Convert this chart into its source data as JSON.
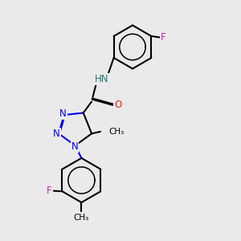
{
  "background_color": "#eaeaea",
  "bond_color": "#000000",
  "N_color": "#0000ee",
  "O_color": "#ee2200",
  "F_color": "#cc22bb",
  "H_color": "#227777",
  "lw": 1.5,
  "fs": 8.5,
  "figsize": [
    3.0,
    3.0
  ],
  "dpi": 100,
  "xlim": [
    0,
    10
  ],
  "ylim": [
    0,
    10
  ]
}
